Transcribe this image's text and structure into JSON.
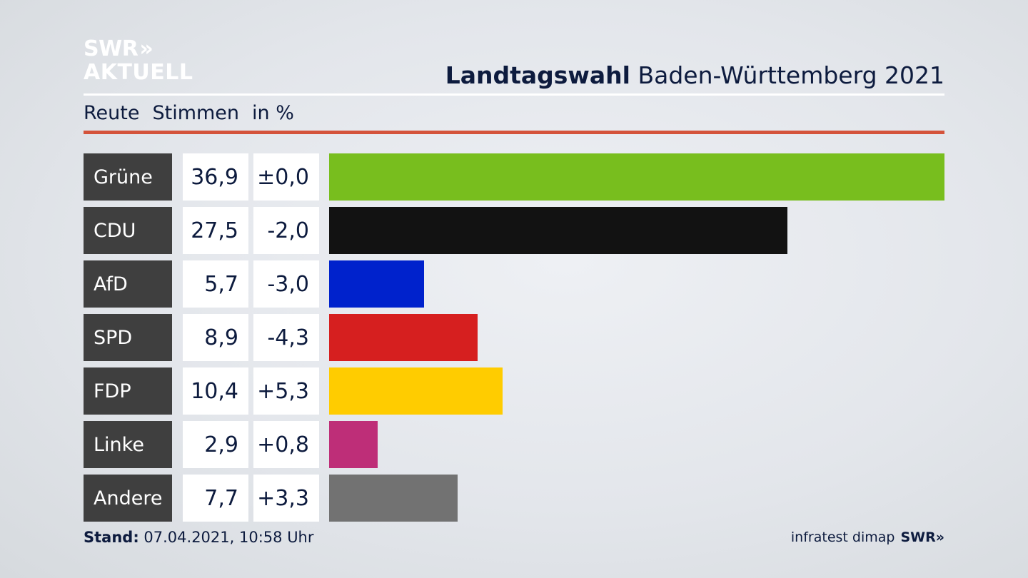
{
  "logo": {
    "line1": "SWR",
    "chevrons": "»",
    "line2": "AKTUELL"
  },
  "header": {
    "title_bold": "Landtagswahl",
    "title_rest": "Baden-Württemberg 2021",
    "subtitle_place": "Reute",
    "subtitle_metric": "Stimmen",
    "subtitle_unit": "in %"
  },
  "footer": {
    "stand_label": "Stand:",
    "stand_value": "07.04.2021, 10:58 Uhr",
    "source": "infratest dimap",
    "source_brand": "SWR»"
  },
  "colors": {
    "accent_rule": "#d4533b",
    "label_bg": "#3f3f3f"
  },
  "chart_data": {
    "type": "bar",
    "orientation": "horizontal",
    "categories": [
      "Grüne",
      "CDU",
      "AfD",
      "SPD",
      "FDP",
      "Linke",
      "Andere"
    ],
    "values": [
      36.9,
      27.5,
      5.7,
      8.9,
      10.4,
      2.9,
      7.7
    ],
    "value_labels": [
      "36,9",
      "27,5",
      "5,7",
      "8,9",
      "10,4",
      "2,9",
      "7,7"
    ],
    "diff_labels": [
      "±0,0",
      "-2,0",
      "-3,0",
      "-4,3",
      "+5,3",
      "+0,8",
      "+3,3"
    ],
    "colors": [
      "#78be1e",
      "#121212",
      "#0022cc",
      "#d61f1f",
      "#ffcc00",
      "#be2e78",
      "#727272"
    ],
    "xlim": [
      0,
      36.9
    ],
    "grid": false,
    "legend": "none"
  }
}
